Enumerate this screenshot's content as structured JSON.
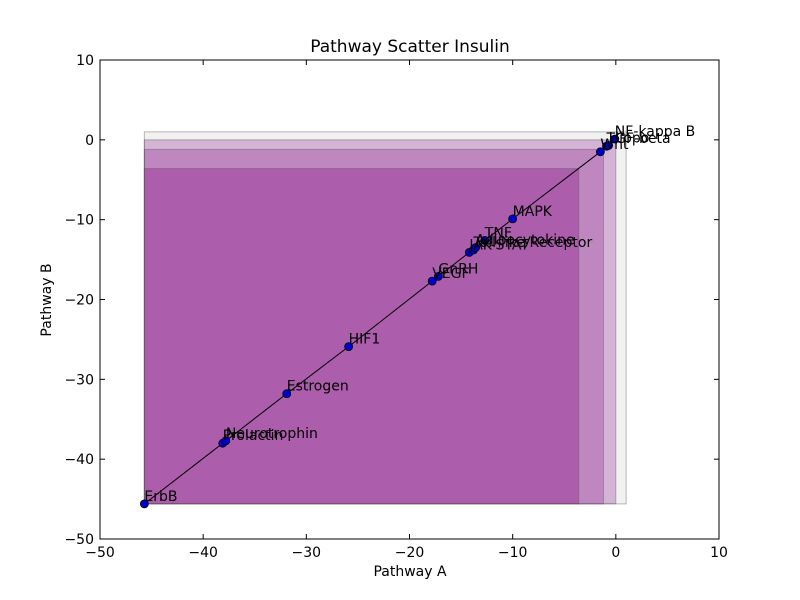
{
  "chart_data": {
    "type": "scatter",
    "title": "Pathway Scatter Insulin",
    "xlabel": "Pathway A",
    "ylabel": "Pathway B",
    "xlim": [
      -50,
      10
    ],
    "ylim": [
      -50,
      10
    ],
    "xticks": [
      "−50",
      "−40",
      "−30",
      "−20",
      "−10",
      "0",
      "10"
    ],
    "yticks": [
      "10",
      "0",
      "−10",
      "−20",
      "−30",
      "−40",
      "−50"
    ],
    "xtick_values": [
      -50,
      -40,
      -30,
      -20,
      -10,
      0,
      10
    ],
    "ytick_values": [
      10,
      0,
      -10,
      -20,
      -30,
      -40,
      -50
    ],
    "grid": false,
    "colors": {
      "point": "#0000cc",
      "line": "#000000",
      "outer_box": "#d8d8d8",
      "box_fill": "#800080"
    },
    "regions": [
      {
        "x0": -45.7,
        "x1": 1.0,
        "y0": -45.6,
        "y1": 1.0,
        "fill": "#d8d8d8",
        "opacity": 0.35
      },
      {
        "x0": -45.7,
        "x1": 0.0,
        "y0": -45.6,
        "y1": 0.0,
        "fill": "#800080",
        "opacity": 0.25
      },
      {
        "x0": -45.7,
        "x1": -1.2,
        "y0": -45.6,
        "y1": -1.2,
        "fill": "#800080",
        "opacity": 0.25
      },
      {
        "x0": -45.7,
        "x1": -3.6,
        "y0": -45.6,
        "y1": -3.6,
        "fill": "#800080",
        "opacity": 0.3
      }
    ],
    "points": [
      {
        "label": "ErbB",
        "x": -45.7,
        "y": -45.6
      },
      {
        "label": "Prolactin",
        "x": -38.1,
        "y": -38.0
      },
      {
        "label": "Neurotrophin",
        "x": -37.8,
        "y": -37.7
      },
      {
        "label": "Estrogen",
        "x": -31.9,
        "y": -31.8
      },
      {
        "label": "HIF1",
        "x": -25.9,
        "y": -25.9
      },
      {
        "label": "VEGF",
        "x": -17.8,
        "y": -17.7
      },
      {
        "label": "GnRH",
        "x": -17.2,
        "y": -17.1
      },
      {
        "label": "JAK-STAT",
        "x": -14.2,
        "y": -14.1
      },
      {
        "label": "Toll-like Receptor",
        "x": -13.8,
        "y": -13.8
      },
      {
        "label": "Adipocytokine",
        "x": -13.6,
        "y": -13.5
      },
      {
        "label": "TNF",
        "x": -12.7,
        "y": -12.6
      },
      {
        "label": "MAPK",
        "x": -10.0,
        "y": -9.9
      },
      {
        "label": "Wnt",
        "x": -1.5,
        "y": -1.5
      },
      {
        "label": "TGF-beta",
        "x": -0.9,
        "y": -0.8
      },
      {
        "label": "Hippo",
        "x": -0.7,
        "y": -0.7
      },
      {
        "label": "NF-kappa B",
        "x": -0.1,
        "y": 0.1
      }
    ]
  }
}
